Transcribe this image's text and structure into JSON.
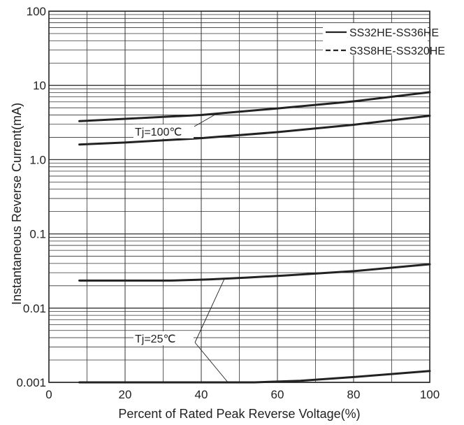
{
  "chart_data": {
    "type": "line",
    "title": "",
    "xlabel": "Percent of Rated Peak Reverse Voltage(%)",
    "ylabel": "Instantaneous Reverse Current(mA)",
    "xlim": [
      0,
      100
    ],
    "ylim": [
      0.001,
      100
    ],
    "yscale": "log",
    "grid": true,
    "x_ticks": [
      0,
      20,
      40,
      60,
      80,
      100
    ],
    "x_tick_labels": [
      "0",
      "20",
      "40",
      "60",
      "80",
      "100"
    ],
    "y_ticks": [
      0.001,
      0.01,
      0.1,
      1,
      10,
      100
    ],
    "y_tick_labels": [
      "0.001",
      "0.01",
      "0.1",
      "1.0",
      "10",
      "100"
    ],
    "legend": {
      "placement": "top-right",
      "entries": [
        {
          "label": "SS32HE-SS36HE",
          "style": "solid"
        },
        {
          "label": "S3S8HE-SS320HE",
          "style": "dashed"
        }
      ]
    },
    "series": [
      {
        "id": "tj100-upper",
        "style": "solid",
        "points": [
          [
            8,
            3.3
          ],
          [
            20,
            3.55
          ],
          [
            40,
            4.0
          ],
          [
            60,
            4.9
          ],
          [
            80,
            6.1
          ],
          [
            100,
            8.1
          ]
        ]
      },
      {
        "id": "tj100-lower",
        "style": "solid",
        "points": [
          [
            8,
            1.6
          ],
          [
            20,
            1.7
          ],
          [
            40,
            1.95
          ],
          [
            60,
            2.35
          ],
          [
            80,
            2.95
          ],
          [
            100,
            3.9
          ]
        ]
      },
      {
        "id": "tj25-upper",
        "style": "solid",
        "points": [
          [
            8,
            0.0235
          ],
          [
            20,
            0.0235
          ],
          [
            32,
            0.0235
          ],
          [
            42,
            0.0243
          ],
          [
            52,
            0.0258
          ],
          [
            62,
            0.0275
          ],
          [
            80,
            0.0315
          ],
          [
            100,
            0.039
          ]
        ]
      },
      {
        "id": "tj25-lower",
        "style": "solid",
        "points": [
          [
            8,
            0.001
          ],
          [
            30,
            0.001
          ],
          [
            54,
            0.001
          ],
          [
            66,
            0.00105
          ],
          [
            80,
            0.00118
          ],
          [
            100,
            0.00142
          ]
        ]
      }
    ],
    "annotations": [
      {
        "text": "Tj=100℃",
        "targets": [
          [
            44,
            4.15
          ]
        ]
      },
      {
        "text": "Tj=25℃",
        "targets": [
          [
            46,
            0.0243
          ],
          [
            47,
            0.001
          ]
        ]
      }
    ]
  }
}
